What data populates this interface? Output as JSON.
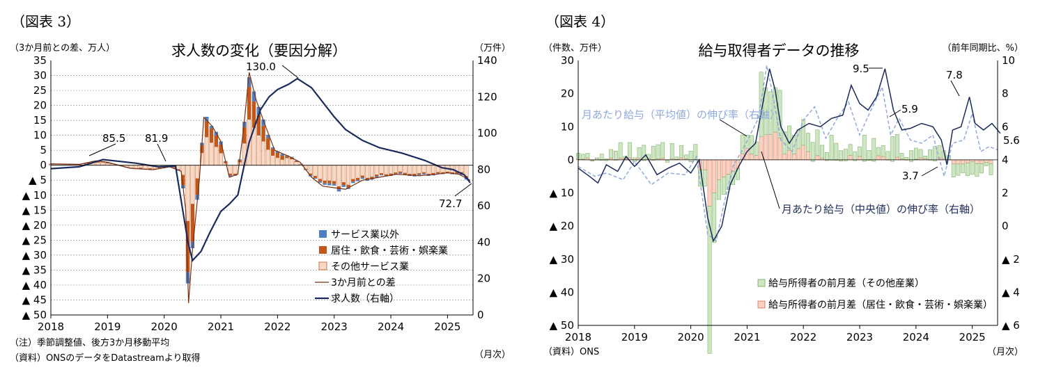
{
  "left": {
    "figure_label": "（図表 3）",
    "title": "求人数の変化（要因分解）",
    "left_unit": "（3か月前との差、万人）",
    "right_unit": "（万件）",
    "note": "（注）季節調整値、後方3か月移動平均",
    "source": "（資料）ONSのデータをDatastreamより取得",
    "x_unit": "（月次）",
    "legend": [
      "サービス業以外",
      "居住・飲食・芸術・娯楽業",
      "その他サービス業",
      "3か月前との差",
      "求人数（右軸）"
    ],
    "annotations": [
      "85.5",
      "81.9",
      "130.0",
      "72.7"
    ],
    "colors": {
      "non_service": "#4f7fc1",
      "accommodation": "#c0581b",
      "other_service": "#f7d9c8",
      "diff_line": "#7b2d0e",
      "vacancies": "#1a2a5c"
    }
  },
  "right": {
    "figure_label": "（図表 4）",
    "title": "給与取得者データの推移",
    "left_unit": "（件数、万件）",
    "right_unit": "（前年同期比、%）",
    "source": "（資料）ONS",
    "x_unit": "（月次）",
    "label_mean": "月あたり給与（平均値）の伸び率（右軸）",
    "label_median": "月あたり給与（中央値）の伸び率（右軸）",
    "legend": [
      "給与所得者の前月差（その他産業）",
      "給与所得者の前月差（居住・飲食・芸術・娯楽業）"
    ],
    "annotations": [
      "9.5",
      "5.9",
      "7.8",
      "5.6",
      "3.7"
    ],
    "colors": {
      "other": "#cfe6c2",
      "other_edge": "#6fa859",
      "acc": "#f9d2c3",
      "acc_edge": "#d96a4c",
      "mean": "#8ea9db",
      "median": "#1a2a5c"
    }
  },
  "chart_data": [
    {
      "type": "bar",
      "title": "求人数の変化（要因分解）",
      "x": [
        "2018",
        "2019",
        "2020",
        "2021",
        "2022",
        "2023",
        "2024",
        "2025"
      ],
      "ylim": [
        -50,
        35
      ],
      "y2lim": [
        0,
        140
      ],
      "series": [
        {
          "name": "求人数（右軸）",
          "axis": "right",
          "points": [
            [
              2018.0,
              80.5
            ],
            [
              2018.5,
              81.5
            ],
            [
              2018.92,
              85.5
            ],
            [
              2019.5,
              83.5
            ],
            [
              2019.9,
              81.5
            ],
            [
              2020.2,
              81.9
            ],
            [
              2020.42,
              40
            ],
            [
              2020.5,
              30
            ],
            [
              2020.65,
              35
            ],
            [
              2020.8,
              45
            ],
            [
              2021.0,
              57
            ],
            [
              2021.15,
              61
            ],
            [
              2021.3,
              66
            ],
            [
              2021.5,
              95
            ],
            [
              2021.7,
              113
            ],
            [
              2021.85,
              120
            ],
            [
              2022.0,
              124
            ],
            [
              2022.2,
              127
            ],
            [
              2022.35,
              130.0
            ],
            [
              2022.6,
              125
            ],
            [
              2022.8,
              117
            ],
            [
              2023.0,
              109
            ],
            [
              2023.2,
              102
            ],
            [
              2023.5,
              96
            ],
            [
              2023.8,
              92
            ],
            [
              2024.2,
              89
            ],
            [
              2024.6,
              85
            ],
            [
              2024.9,
              81
            ],
            [
              2025.1,
              80
            ],
            [
              2025.3,
              77
            ],
            [
              2025.4,
              72.7
            ]
          ]
        },
        {
          "name": "3か月前との差",
          "axis": "left",
          "points": [
            [
              2018.0,
              0.5
            ],
            [
              2018.5,
              0.3
            ],
            [
              2018.8,
              1.5
            ],
            [
              2019.0,
              1
            ],
            [
              2019.4,
              -1
            ],
            [
              2019.8,
              -1.5
            ],
            [
              2020.1,
              -0.5
            ],
            [
              2020.3,
              -2
            ],
            [
              2020.38,
              -15
            ],
            [
              2020.43,
              -46
            ],
            [
              2020.5,
              -28
            ],
            [
              2020.62,
              -5
            ],
            [
              2020.7,
              16
            ],
            [
              2020.85,
              13
            ],
            [
              2021.0,
              8
            ],
            [
              2021.15,
              -4
            ],
            [
              2021.3,
              -3
            ],
            [
              2021.4,
              12
            ],
            [
              2021.5,
              31
            ],
            [
              2021.62,
              22
            ],
            [
              2021.75,
              15
            ],
            [
              2021.95,
              5
            ],
            [
              2022.2,
              3
            ],
            [
              2022.4,
              1
            ],
            [
              2022.6,
              -4
            ],
            [
              2022.8,
              -7
            ],
            [
              2023.0,
              -7.5
            ],
            [
              2023.2,
              -8
            ],
            [
              2023.5,
              -5
            ],
            [
              2023.8,
              -4
            ],
            [
              2024.1,
              -3
            ],
            [
              2024.5,
              -3.5
            ],
            [
              2024.8,
              -3
            ],
            [
              2025.0,
              -2.5
            ],
            [
              2025.2,
              -3
            ],
            [
              2025.4,
              -5
            ]
          ]
        }
      ]
    },
    {
      "type": "bar",
      "title": "給与取得者データの推移",
      "x": [
        "2018",
        "2019",
        "2020",
        "2021",
        "2022",
        "2023",
        "2024",
        "2025"
      ],
      "ylim": [
        -50,
        30
      ],
      "y2lim": [
        -6,
        10
      ],
      "series": [
        {
          "name": "月あたり給与（中央値）の伸び率（右軸）",
          "axis": "right",
          "points": [
            [
              2018.0,
              3.5
            ],
            [
              2018.2,
              3.0
            ],
            [
              2018.35,
              2.6
            ],
            [
              2018.5,
              3.7
            ],
            [
              2018.7,
              3.3
            ],
            [
              2018.85,
              4.2
            ],
            [
              2019.0,
              3.6
            ],
            [
              2019.2,
              4.3
            ],
            [
              2019.4,
              3.1
            ],
            [
              2019.6,
              3.5
            ],
            [
              2019.8,
              3.8
            ],
            [
              2020.0,
              3.2
            ],
            [
              2020.15,
              4.0
            ],
            [
              2020.3,
              0.5
            ],
            [
              2020.4,
              -0.9
            ],
            [
              2020.55,
              0.0
            ],
            [
              2020.7,
              2.5
            ],
            [
              2020.85,
              3.6
            ],
            [
              2021.0,
              4.5
            ],
            [
              2021.15,
              5.0
            ],
            [
              2021.3,
              7.8
            ],
            [
              2021.4,
              9.5
            ],
            [
              2021.5,
              8.2
            ],
            [
              2021.6,
              6.0
            ],
            [
              2021.75,
              5.0
            ],
            [
              2021.9,
              5.8
            ],
            [
              2022.1,
              6.2
            ],
            [
              2022.3,
              6.0
            ],
            [
              2022.5,
              6.5
            ],
            [
              2022.7,
              6.7
            ],
            [
              2022.85,
              8.5
            ],
            [
              2023.0,
              7.4
            ],
            [
              2023.15,
              7.0
            ],
            [
              2023.3,
              7.8
            ],
            [
              2023.45,
              9.5
            ],
            [
              2023.6,
              7.0
            ],
            [
              2023.75,
              5.8
            ],
            [
              2023.9,
              5.9
            ],
            [
              2024.1,
              6.2
            ],
            [
              2024.3,
              6.0
            ],
            [
              2024.45,
              5.2
            ],
            [
              2024.55,
              3.7
            ],
            [
              2024.65,
              5.8
            ],
            [
              2024.8,
              6.0
            ],
            [
              2024.95,
              7.8
            ],
            [
              2025.05,
              6.2
            ],
            [
              2025.2,
              5.8
            ],
            [
              2025.35,
              6.2
            ],
            [
              2025.5,
              5.6
            ]
          ]
        },
        {
          "name": "月あたり給与（平均値）の伸び率（右軸）",
          "axis": "right",
          "points": [
            [
              2018.0,
              3.6
            ],
            [
              2018.3,
              3.0
            ],
            [
              2018.5,
              3.2
            ],
            [
              2018.8,
              2.8
            ],
            [
              2019.0,
              3.9
            ],
            [
              2019.3,
              2.5
            ],
            [
              2019.6,
              3.2
            ],
            [
              2019.9,
              3.1
            ],
            [
              2020.1,
              4.2
            ],
            [
              2020.3,
              -0.5
            ],
            [
              2020.45,
              -0.9
            ],
            [
              2020.6,
              1.5
            ],
            [
              2020.75,
              3.6
            ],
            [
              2020.95,
              4.8
            ],
            [
              2021.2,
              6.5
            ],
            [
              2021.35,
              9.7
            ],
            [
              2021.45,
              8.0
            ],
            [
              2021.6,
              5.2
            ],
            [
              2021.8,
              4.5
            ],
            [
              2022.0,
              6.4
            ],
            [
              2022.2,
              7.2
            ],
            [
              2022.4,
              5.3
            ],
            [
              2022.6,
              6.5
            ],
            [
              2022.8,
              7.5
            ],
            [
              2023.0,
              5.5
            ],
            [
              2023.2,
              7.0
            ],
            [
              2023.4,
              8.4
            ],
            [
              2023.55,
              5.5
            ],
            [
              2023.7,
              6.5
            ],
            [
              2023.9,
              5.2
            ],
            [
              2024.1,
              5.0
            ],
            [
              2024.3,
              5.5
            ],
            [
              2024.5,
              3.0
            ],
            [
              2024.65,
              5.0
            ],
            [
              2024.85,
              5.2
            ],
            [
              2025.0,
              6.8
            ],
            [
              2025.15,
              4.5
            ],
            [
              2025.3,
              4.8
            ],
            [
              2025.45,
              4.6
            ]
          ]
        }
      ]
    }
  ]
}
